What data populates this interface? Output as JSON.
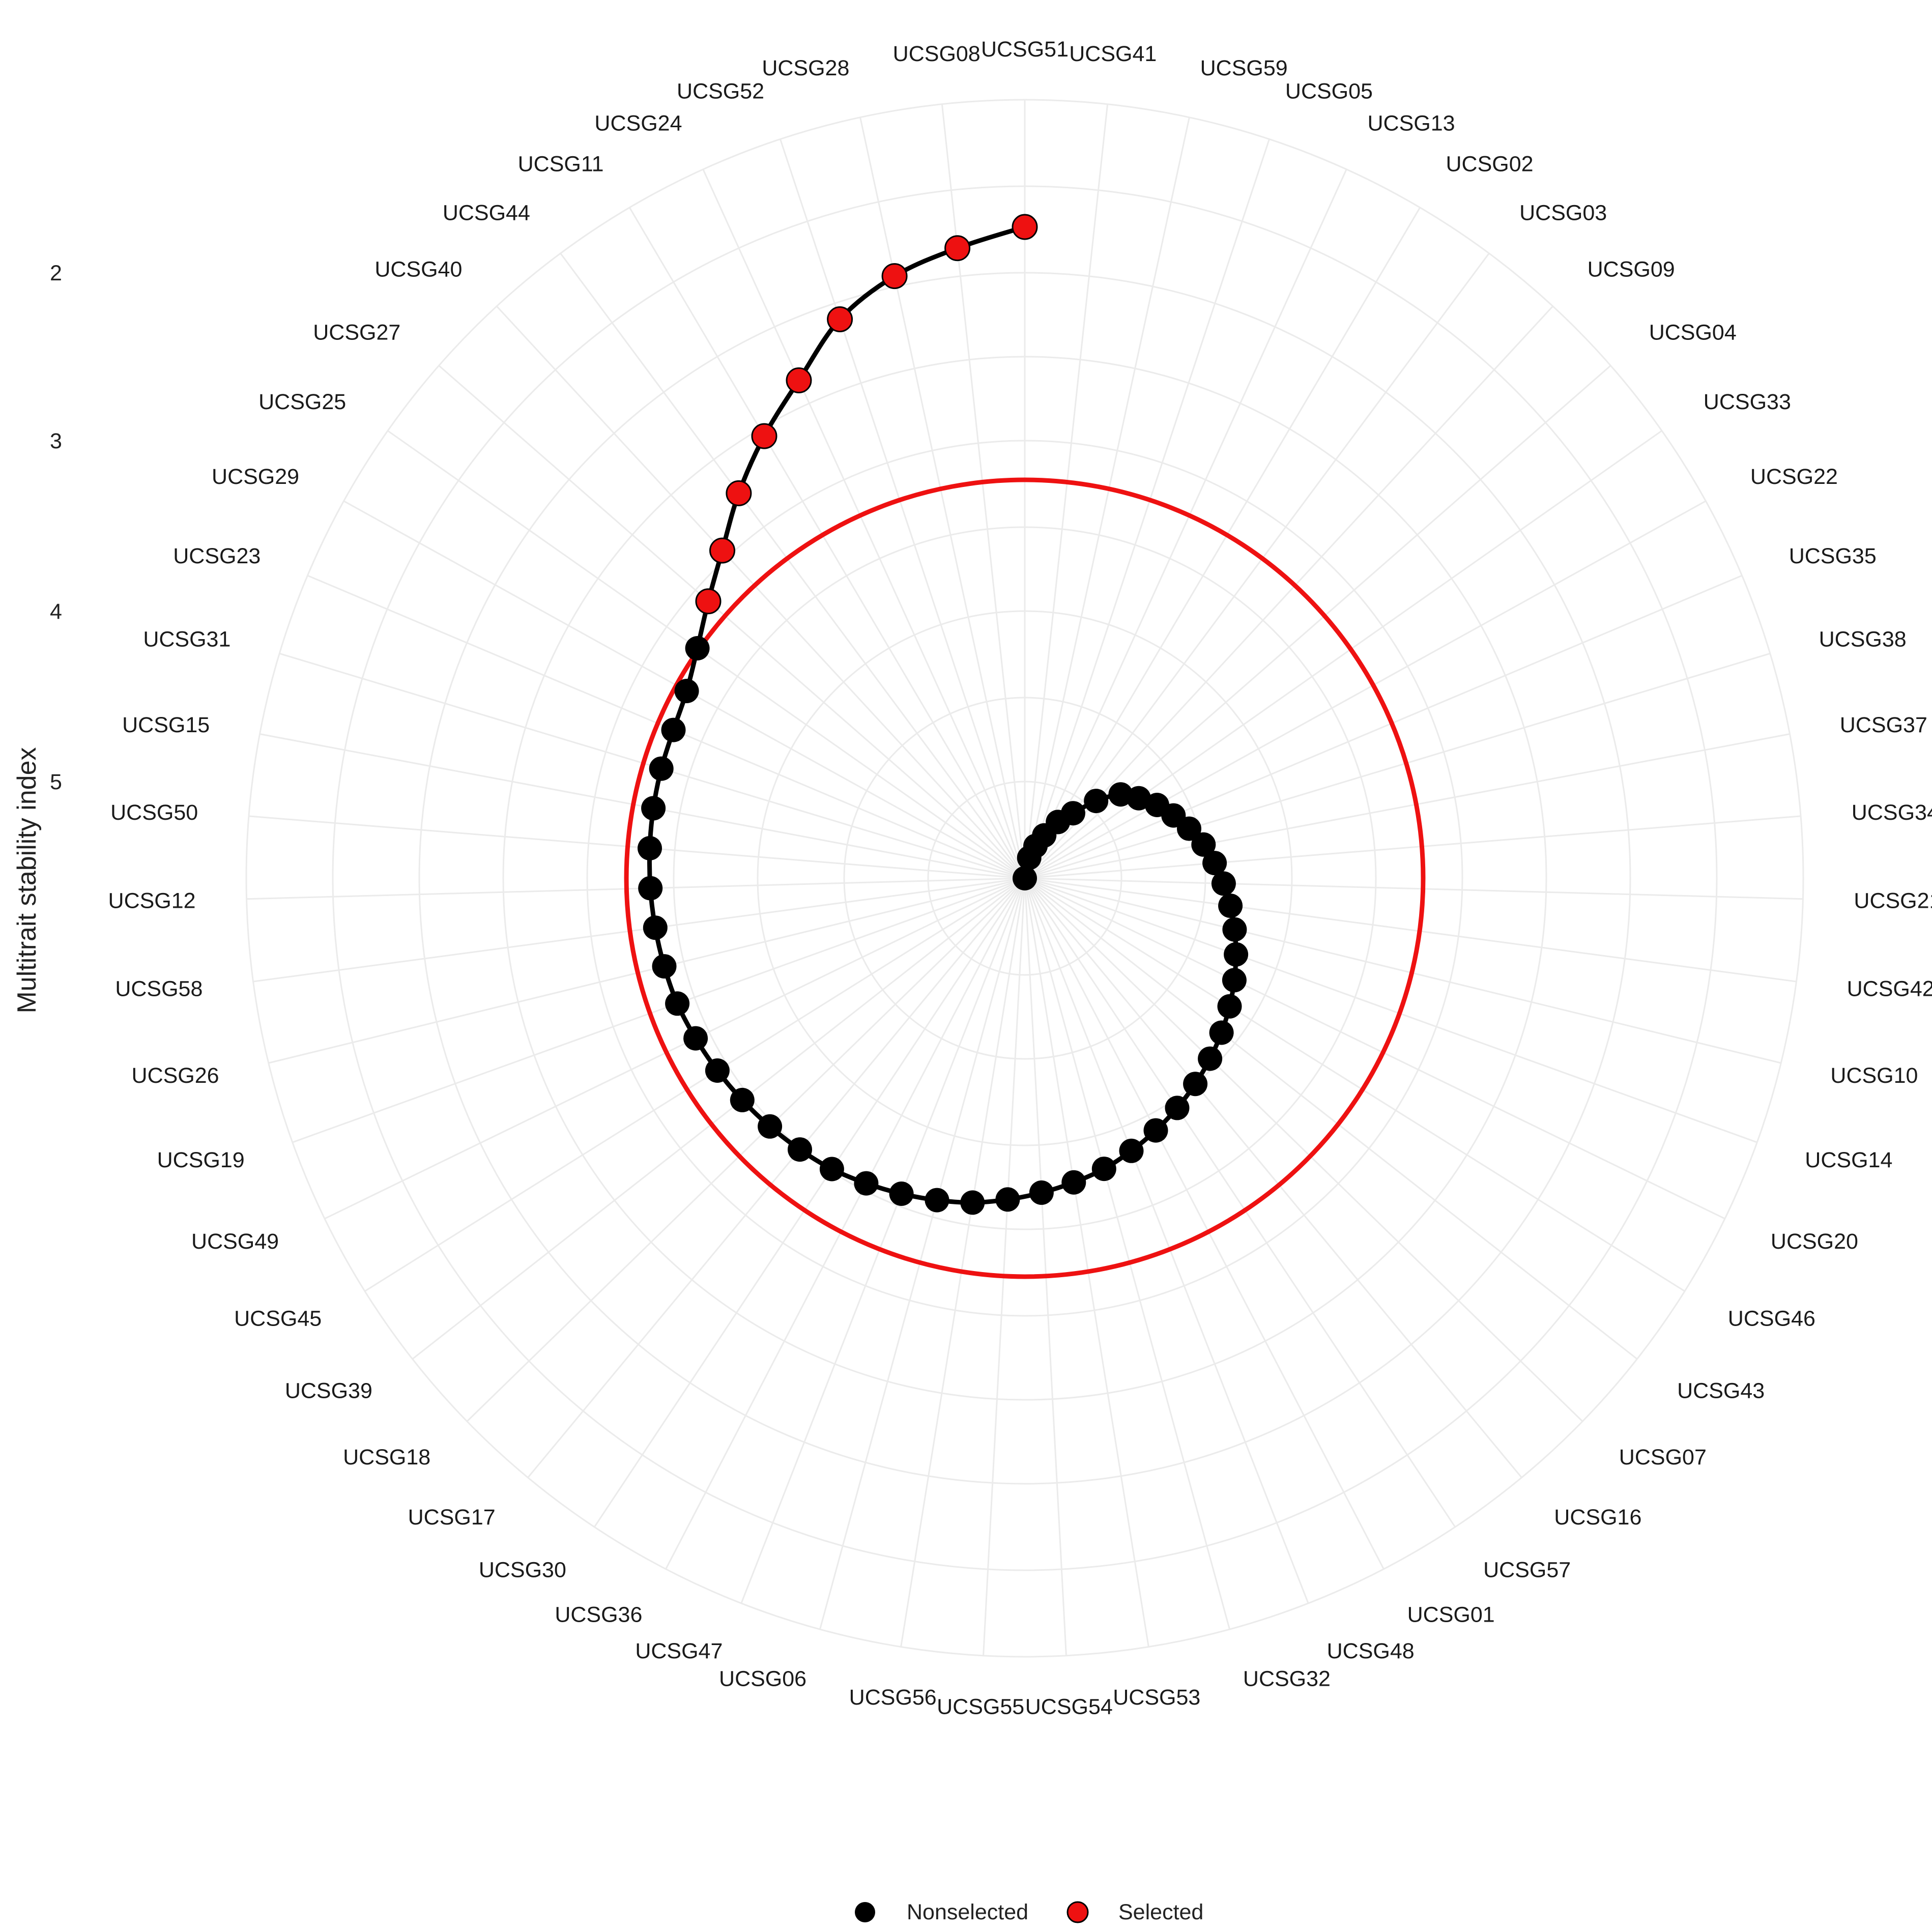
{
  "chart_data": {
    "type": "polar-line",
    "ylabel": "Multitrait stability index",
    "radial_ticks": [
      2,
      3,
      4,
      5
    ],
    "radial_range": [
      1.35,
      6.85
    ],
    "reversed_radius": true,
    "cutoff_index": 3.23,
    "cutoff_color": "#ee1111",
    "line_color": "#000000",
    "grid": true,
    "legend_position": "bottom",
    "legend": [
      {
        "label": "Nonselected",
        "color": "#000000"
      },
      {
        "label": "Selected",
        "color": "#ee1111"
      }
    ],
    "genotypes": [
      {
        "name": "UCSG51",
        "index": 1.35,
        "selected": true
      },
      {
        "name": "UCSG08",
        "index": 1.6,
        "selected": true
      },
      {
        "name": "UCSG28",
        "index": 1.85,
        "selected": true
      },
      {
        "name": "UCSG52",
        "index": 2.1,
        "selected": true
      },
      {
        "name": "UCSG24",
        "index": 2.35,
        "selected": true
      },
      {
        "name": "UCSG11",
        "index": 2.55,
        "selected": true
      },
      {
        "name": "UCSG44",
        "index": 2.75,
        "selected": true
      },
      {
        "name": "UCSG40",
        "index": 2.95,
        "selected": true
      },
      {
        "name": "UCSG27",
        "index": 3.1,
        "selected": true
      },
      {
        "name": "UCSG25",
        "index": 3.22,
        "selected": false
      },
      {
        "name": "UCSG29",
        "index": 3.3,
        "selected": false
      },
      {
        "name": "UCSG23",
        "index": 3.33,
        "selected": false
      },
      {
        "name": "UCSG31",
        "index": 3.34,
        "selected": false
      },
      {
        "name": "UCSG15",
        "index": 3.35,
        "selected": false
      },
      {
        "name": "UCSG50",
        "index": 3.36,
        "selected": false
      },
      {
        "name": "UCSG12",
        "index": 3.37,
        "selected": false
      },
      {
        "name": "UCSG58",
        "index": 3.38,
        "selected": false
      },
      {
        "name": "UCSG26",
        "index": 3.39,
        "selected": false
      },
      {
        "name": "UCSG19",
        "index": 3.4,
        "selected": false
      },
      {
        "name": "UCSG49",
        "index": 3.42,
        "selected": false
      },
      {
        "name": "UCSG45",
        "index": 3.44,
        "selected": false
      },
      {
        "name": "UCSG39",
        "index": 3.46,
        "selected": false
      },
      {
        "name": "UCSG18",
        "index": 3.48,
        "selected": false
      },
      {
        "name": "UCSG17",
        "index": 3.5,
        "selected": false
      },
      {
        "name": "UCSG30",
        "index": 3.52,
        "selected": false
      },
      {
        "name": "UCSG36",
        "index": 3.55,
        "selected": false
      },
      {
        "name": "UCSG47",
        "index": 3.58,
        "selected": false
      },
      {
        "name": "UCSG06",
        "index": 3.61,
        "selected": false
      },
      {
        "name": "UCSG56",
        "index": 3.64,
        "selected": false
      },
      {
        "name": "UCSG55",
        "index": 3.68,
        "selected": false
      },
      {
        "name": "UCSG54",
        "index": 3.72,
        "selected": false
      },
      {
        "name": "UCSG53",
        "index": 3.76,
        "selected": false
      },
      {
        "name": "UCSG32",
        "index": 3.8,
        "selected": false
      },
      {
        "name": "UCSG48",
        "index": 3.85,
        "selected": false
      },
      {
        "name": "UCSG01",
        "index": 3.9,
        "selected": false
      },
      {
        "name": "UCSG57",
        "index": 3.95,
        "selected": false
      },
      {
        "name": "UCSG16",
        "index": 4.0,
        "selected": false
      },
      {
        "name": "UCSG07",
        "index": 4.05,
        "selected": false
      },
      {
        "name": "UCSG43",
        "index": 4.1,
        "selected": false
      },
      {
        "name": "UCSG46",
        "index": 4.15,
        "selected": false
      },
      {
        "name": "UCSG20",
        "index": 4.2,
        "selected": false
      },
      {
        "name": "UCSG14",
        "index": 4.25,
        "selected": false
      },
      {
        "name": "UCSG10",
        "index": 4.3,
        "selected": false
      },
      {
        "name": "UCSG42",
        "index": 4.35,
        "selected": false
      },
      {
        "name": "UCSG21",
        "index": 4.4,
        "selected": false
      },
      {
        "name": "UCSG34",
        "index": 4.45,
        "selected": false
      },
      {
        "name": "UCSG37",
        "index": 4.5,
        "selected": false
      },
      {
        "name": "UCSG38",
        "index": 4.56,
        "selected": false
      },
      {
        "name": "UCSG35",
        "index": 4.62,
        "selected": false
      },
      {
        "name": "UCSG22",
        "index": 4.68,
        "selected": false
      },
      {
        "name": "UCSG33",
        "index": 4.75,
        "selected": false
      },
      {
        "name": "UCSG04",
        "index": 4.82,
        "selected": false
      },
      {
        "name": "UCSG09",
        "index": 4.95,
        "selected": false
      },
      {
        "name": "UCSG03",
        "index": 5.3,
        "selected": false
      },
      {
        "name": "UCSG02",
        "index": 5.6,
        "selected": false
      },
      {
        "name": "UCSG13",
        "index": 5.95,
        "selected": false
      },
      {
        "name": "UCSG05",
        "index": 6.2,
        "selected": false
      },
      {
        "name": "UCSG59",
        "index": 6.45,
        "selected": false
      },
      {
        "name": "UCSG41",
        "index": 6.85,
        "selected": false
      }
    ]
  }
}
